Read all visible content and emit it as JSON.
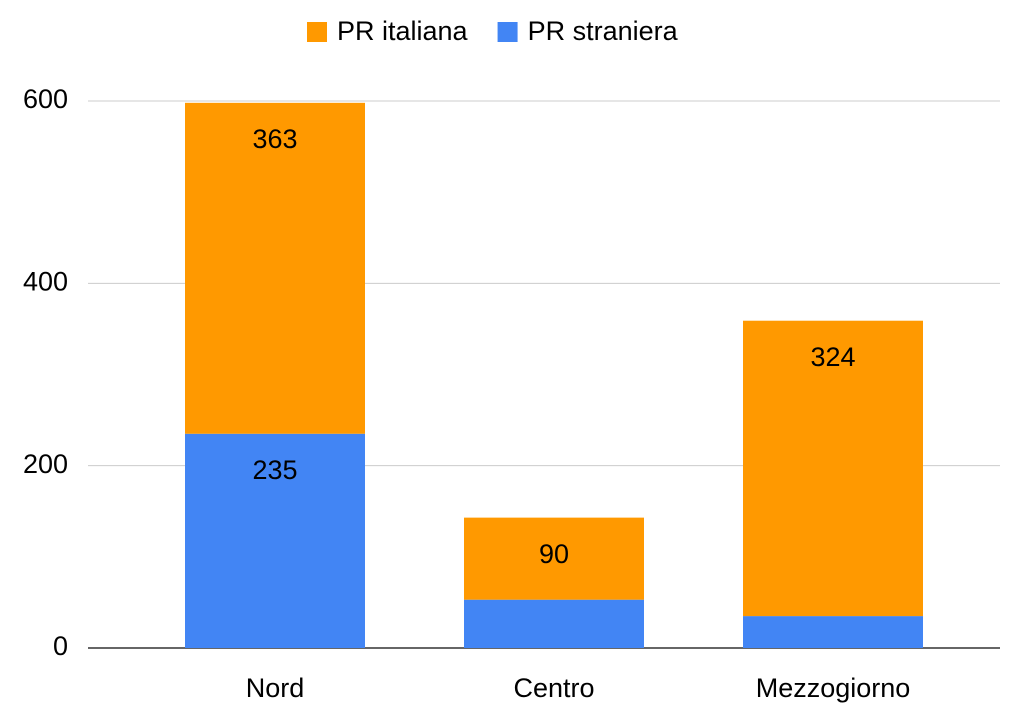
{
  "chart_data": {
    "type": "stacked-bar",
    "categories": [
      "Nord",
      "Centro",
      "Mezzogiorno"
    ],
    "series": [
      {
        "name": "PR italiana",
        "color": "#ff9900",
        "values": [
          363,
          90,
          324
        ]
      },
      {
        "name": "PR straniera",
        "color": "#4285f4",
        "values": [
          235,
          53,
          35
        ]
      }
    ],
    "ylim": [
      0,
      600
    ],
    "yticks": [
      0,
      200,
      400,
      600
    ],
    "grid": true
  }
}
